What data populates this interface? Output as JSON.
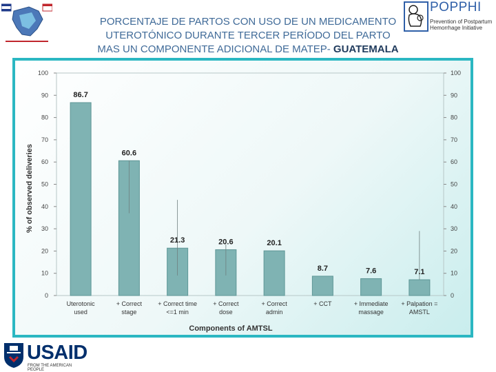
{
  "slide": {
    "title_line1": "PORCENTAJE DE PARTOS CON USO DE UN MEDICAMENTO",
    "title_line2": "UTEROTÓNICO DURANTE TERCER PERÍODO DEL PARTO",
    "title_line3a": "MAS UN COMPONENTE ADICIONAL DE MATEP- ",
    "title_line3b": "GUATEMALA",
    "popphi_name": "POPPHI",
    "popphi_tagline1": "Prevention of Postpartum",
    "popphi_tagline2": "Hemorrhage Initiative",
    "usaid_name": "USAID",
    "usaid_tagline": "FROM THE AMERICAN PEOPLE"
  },
  "colors": {
    "bar": "#7fb3b3",
    "bar_stroke": "#5e9696",
    "title": "#3f6a98",
    "frame": "#2bb7c2"
  },
  "chart_data": {
    "type": "bar",
    "title": "",
    "xlabel": "Components of AMTSL",
    "ylabel": "% of observed deliveries",
    "ylim": [
      0,
      100
    ],
    "yticks": [
      0,
      10,
      20,
      30,
      40,
      50,
      60,
      70,
      80,
      90,
      100
    ],
    "categories": [
      [
        "Uterotonic",
        "used"
      ],
      [
        "+ Correct",
        "stage"
      ],
      [
        "+ Correct time",
        "<=1 min"
      ],
      [
        "+ Correct",
        "dose"
      ],
      [
        "+ Correct",
        "admin"
      ],
      [
        "+ CCT"
      ],
      [
        "+ Immediate",
        "massage"
      ],
      [
        "+ Palpation =",
        "AMSTL"
      ]
    ],
    "values": [
      86.7,
      60.6,
      21.3,
      20.6,
      20.1,
      8.7,
      7.6,
      7.1
    ],
    "value_labels": [
      "86.7",
      "60.6",
      "21.3",
      "20.6",
      "20.1",
      "8.7",
      "7.6",
      "7.1"
    ],
    "error_upper": [
      86.7,
      60.6,
      43,
      23,
      20.1,
      8.7,
      7.6,
      29
    ],
    "error_lower": [
      86.7,
      37,
      9,
      9,
      20.1,
      8.7,
      7.6,
      7.1
    ]
  }
}
